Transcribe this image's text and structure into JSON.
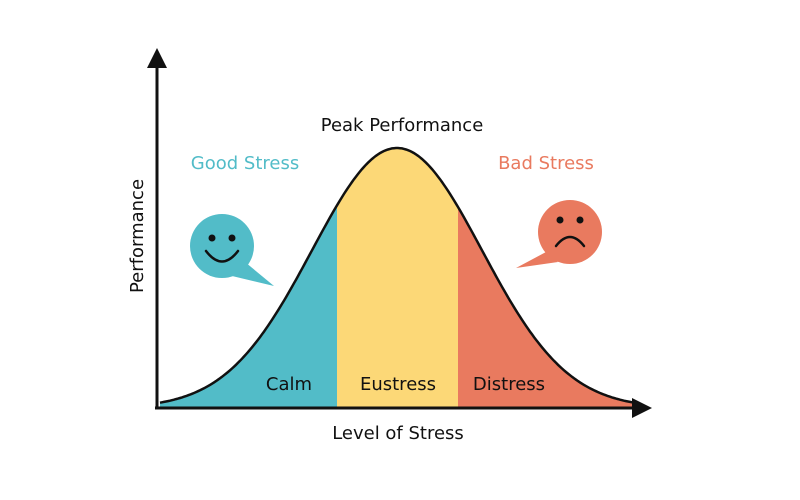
{
  "title": "Peak Performance",
  "y_axis_label": "Performance",
  "x_axis_label": "Level of Stress",
  "good_label": "Good Stress",
  "bad_label": "Bad Stress",
  "zones": [
    "Calm",
    "Eustress",
    "Distress"
  ]
}
